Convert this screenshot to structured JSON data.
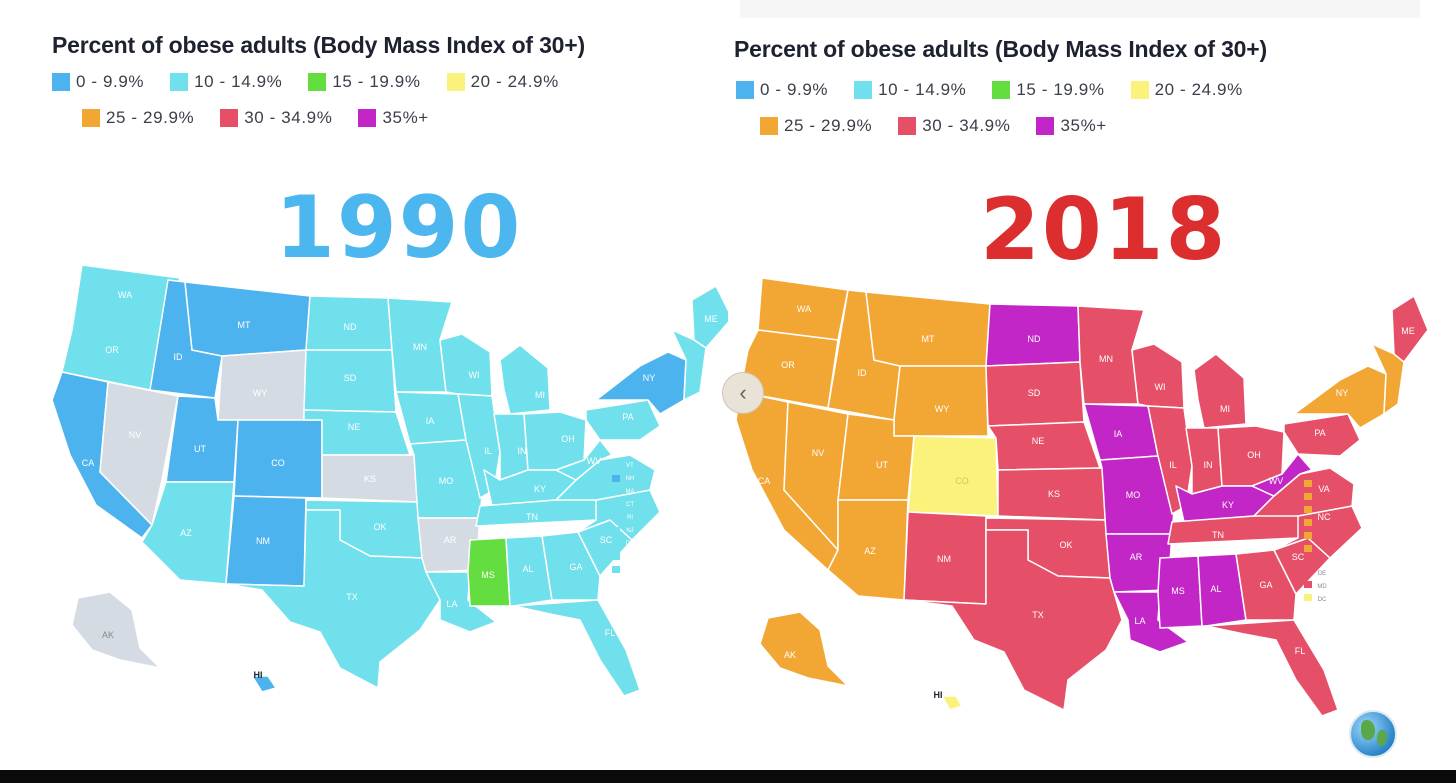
{
  "legend": {
    "title": "Percent of obese adults (Body Mass Index of 30+)",
    "bins": [
      {
        "label": "0 - 9.9%",
        "color": "#4db3ee"
      },
      {
        "label": "10 - 14.9%",
        "color": "#6fe0ec"
      },
      {
        "label": "15 - 19.9%",
        "color": "#64dd40"
      },
      {
        "label": "20 - 24.9%",
        "color": "#fbf27b"
      },
      {
        "label": "25 - 29.9%",
        "color": "#f2a735"
      },
      {
        "label": "30 - 34.9%",
        "color": "#e55068"
      },
      {
        "label": "35%+",
        "color": "#c326c6"
      }
    ]
  },
  "maps": [
    {
      "year": "1990",
      "year_color": "#4cb6ee",
      "no_data_color": "#d5dbe3",
      "regions": {
        "west_coast": {
          "states": [
            "WA",
            "OR"
          ],
          "bin": 1
        },
        "CA": {
          "label": "CA",
          "bin": 0
        },
        "NV": {
          "label": "NV",
          "bin": "no-data"
        },
        "ID": {
          "label": "ID",
          "bin": 0
        },
        "MT": {
          "label": "MT",
          "bin": 0
        },
        "WY": {
          "label": "WY",
          "bin": "no-data"
        },
        "UT": {
          "label": "UT",
          "bin": 0
        },
        "CO": {
          "label": "CO",
          "bin": 0
        },
        "AZ": {
          "label": "AZ",
          "bin": 1
        },
        "NM": {
          "label": "NM",
          "bin": 0
        },
        "ND": {
          "label": "ND",
          "bin": 1
        },
        "SD": {
          "label": "SD",
          "bin": 1
        },
        "NE": {
          "label": "NE",
          "bin": 1
        },
        "KS": {
          "label": "KS",
          "bin": "no-data"
        },
        "OK": {
          "label": "OK",
          "bin": 1
        },
        "TX": {
          "label": "TX",
          "bin": 1
        },
        "MN": {
          "label": "MN",
          "bin": 1
        },
        "IA": {
          "label": "IA",
          "bin": 1
        },
        "MO": {
          "label": "MO",
          "bin": 1
        },
        "AR": {
          "label": "AR",
          "bin": "no-data"
        },
        "LA": {
          "label": "LA",
          "bin": 1
        },
        "MS": {
          "label": "MS",
          "bin": 2
        },
        "AL": {
          "label": "AL",
          "bin": 1
        },
        "GA": {
          "label": "GA",
          "bin": 1
        },
        "FL": {
          "label": "FL",
          "bin": 1
        },
        "WI": {
          "label": "WI",
          "bin": 1
        },
        "MI": {
          "label": "MI",
          "bin": 1
        },
        "IL": {
          "label": "IL",
          "bin": 1
        },
        "IN": {
          "label": "IN",
          "bin": 1
        },
        "OH": {
          "label": "OH",
          "bin": 1
        },
        "KY": {
          "label": "KY",
          "bin": 1
        },
        "TN": {
          "label": "TN",
          "bin": 1
        },
        "SC": {
          "label": "SC",
          "bin": 1
        },
        "NC": {
          "label": "NC",
          "bin": 1
        },
        "VA": {
          "label": "VA",
          "bin": 1
        },
        "WV": {
          "label": "WV",
          "bin": 1
        },
        "PA": {
          "label": "PA",
          "bin": 1
        },
        "NY": {
          "label": "NY",
          "bin": 0
        },
        "ME": {
          "label": "ME",
          "bin": 1
        },
        "AK": {
          "label": "AK",
          "bin": "no-data"
        },
        "HI": {
          "label": "HI",
          "bin": 0
        }
      },
      "small_states": [
        "VT",
        "NH",
        "MA",
        "CT",
        "RI",
        "NJ",
        "DE",
        "MD",
        "DC"
      ]
    },
    {
      "year": "2018",
      "year_color": "#dc2e2e",
      "regions": {
        "WA": {
          "label": "WA",
          "bin": 4
        },
        "OR": {
          "label": "OR",
          "bin": 4
        },
        "CA": {
          "label": "CA",
          "bin": 4
        },
        "NV": {
          "label": "NV",
          "bin": 4
        },
        "ID": {
          "label": "ID",
          "bin": 4
        },
        "MT": {
          "label": "MT",
          "bin": 4
        },
        "WY": {
          "label": "WY",
          "bin": 4
        },
        "UT": {
          "label": "UT",
          "bin": 4
        },
        "CO": {
          "label": "CO",
          "bin": 3
        },
        "AZ": {
          "label": "AZ",
          "bin": 4
        },
        "NM": {
          "label": "NM",
          "bin": 5
        },
        "ND": {
          "label": "ND",
          "bin": 6
        },
        "SD": {
          "label": "SD",
          "bin": 5
        },
        "NE": {
          "label": "NE",
          "bin": 5
        },
        "KS": {
          "label": "KS",
          "bin": 5
        },
        "OK": {
          "label": "OK",
          "bin": 5
        },
        "TX": {
          "label": "TX",
          "bin": 5
        },
        "MN": {
          "label": "MN",
          "bin": 5
        },
        "IA": {
          "label": "IA",
          "bin": 6
        },
        "MO": {
          "label": "MO",
          "bin": 6
        },
        "AR": {
          "label": "AR",
          "bin": 6
        },
        "LA": {
          "label": "LA",
          "bin": 6
        },
        "MS": {
          "label": "MS",
          "bin": 6
        },
        "AL": {
          "label": "AL",
          "bin": 6
        },
        "GA": {
          "label": "GA",
          "bin": 5
        },
        "FL": {
          "label": "FL",
          "bin": 5
        },
        "WI": {
          "label": "WI",
          "bin": 5
        },
        "MI": {
          "label": "MI",
          "bin": 5
        },
        "IL": {
          "label": "IL",
          "bin": 5
        },
        "IN": {
          "label": "IN",
          "bin": 5
        },
        "OH": {
          "label": "OH",
          "bin": 5
        },
        "KY": {
          "label": "KY",
          "bin": 6
        },
        "TN": {
          "label": "TN",
          "bin": 5
        },
        "SC": {
          "label": "SC",
          "bin": 5
        },
        "NC": {
          "label": "NC",
          "bin": 5
        },
        "VA": {
          "label": "VA",
          "bin": 5
        },
        "WV": {
          "label": "WV",
          "bin": 6
        },
        "PA": {
          "label": "PA",
          "bin": 5
        },
        "NY": {
          "label": "NY",
          "bin": 4
        },
        "ME": {
          "label": "ME",
          "bin": 5
        },
        "AK": {
          "label": "AK",
          "bin": 4
        },
        "HI": {
          "label": "HI",
          "bin": 3
        }
      },
      "small_states": [
        "DE",
        "MD",
        "DC"
      ]
    }
  ]
}
